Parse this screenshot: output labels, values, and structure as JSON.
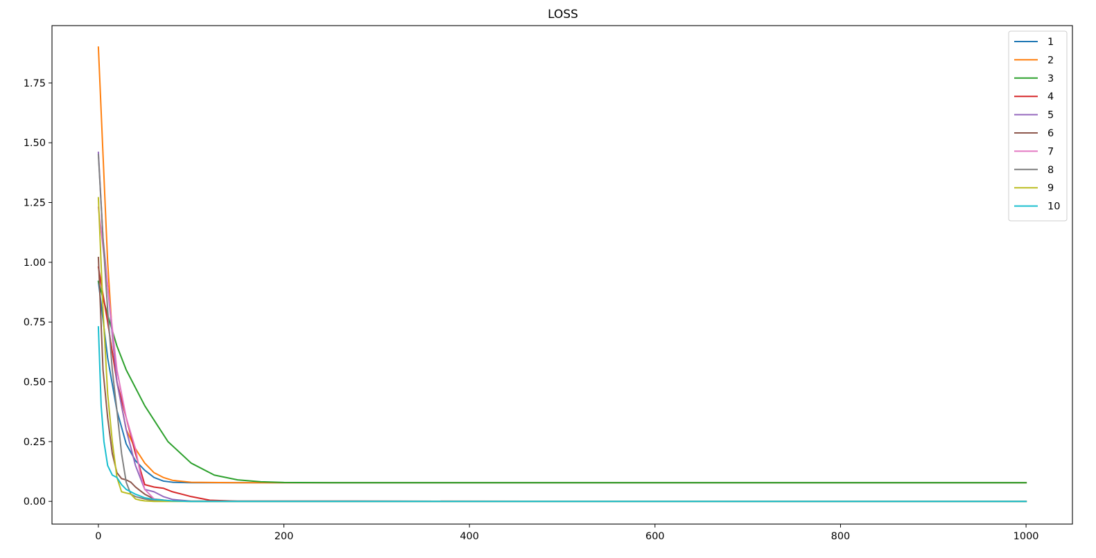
{
  "chart_data": {
    "type": "line",
    "title": "LOSS",
    "xlabel": "",
    "ylabel": "",
    "xlim": [
      -50,
      1050
    ],
    "ylim": [
      -0.095,
      1.99
    ],
    "xticks": [
      0,
      200,
      400,
      600,
      800,
      1000
    ],
    "xtick_labels": [
      "0",
      "200",
      "400",
      "600",
      "800",
      "1000"
    ],
    "yticks": [
      0.0,
      0.25,
      0.5,
      0.75,
      1.0,
      1.25,
      1.5,
      1.75
    ],
    "ytick_labels": [
      "0.00",
      "0.25",
      "0.50",
      "0.75",
      "1.00",
      "1.25",
      "1.50",
      "1.75"
    ],
    "grid": false,
    "legend_position": "top-right",
    "series": [
      {
        "name": "1",
        "color": "#1f77b4",
        "x": [
          0,
          10,
          20,
          30,
          40,
          50,
          60,
          70,
          80,
          100,
          150,
          200,
          1000
        ],
        "y": [
          0.92,
          0.6,
          0.38,
          0.24,
          0.17,
          0.13,
          0.1,
          0.085,
          0.08,
          0.078,
          0.078,
          0.078,
          0.078
        ]
      },
      {
        "name": "2",
        "color": "#ff7f0e",
        "x": [
          0,
          5,
          10,
          15,
          20,
          30,
          40,
          50,
          60,
          70,
          80,
          100,
          150,
          200,
          1000
        ],
        "y": [
          1.9,
          1.45,
          1.0,
          0.7,
          0.5,
          0.3,
          0.22,
          0.16,
          0.12,
          0.1,
          0.088,
          0.08,
          0.078,
          0.078,
          0.078
        ]
      },
      {
        "name": "3",
        "color": "#2ca02c",
        "x": [
          0,
          10,
          20,
          30,
          50,
          75,
          100,
          125,
          150,
          175,
          200,
          250,
          1000
        ],
        "y": [
          0.92,
          0.78,
          0.65,
          0.55,
          0.4,
          0.25,
          0.16,
          0.11,
          0.09,
          0.082,
          0.079,
          0.078,
          0.078
        ]
      },
      {
        "name": "4",
        "color": "#d62728",
        "x": [
          0,
          10,
          20,
          30,
          40,
          50,
          60,
          70,
          80,
          90,
          100,
          120,
          150,
          1000
        ],
        "y": [
          0.98,
          0.75,
          0.5,
          0.35,
          0.2,
          0.07,
          0.06,
          0.055,
          0.04,
          0.03,
          0.02,
          0.005,
          0.001,
          0.0
        ]
      },
      {
        "name": "5",
        "color": "#9467bd",
        "x": [
          0,
          5,
          10,
          15,
          20,
          30,
          40,
          50,
          55,
          60,
          70,
          80,
          100,
          1000
        ],
        "y": [
          1.46,
          1.1,
          0.9,
          0.7,
          0.5,
          0.3,
          0.15,
          0.05,
          0.045,
          0.04,
          0.02,
          0.008,
          0.001,
          0.0
        ]
      },
      {
        "name": "6",
        "color": "#8c564b",
        "x": [
          0,
          5,
          10,
          15,
          20,
          25,
          30,
          35,
          40,
          45,
          50,
          60,
          80,
          1000
        ],
        "y": [
          1.02,
          0.55,
          0.35,
          0.2,
          0.12,
          0.095,
          0.09,
          0.08,
          0.06,
          0.045,
          0.03,
          0.01,
          0.001,
          0.0
        ]
      },
      {
        "name": "7",
        "color": "#e377c2",
        "x": [
          0,
          10,
          20,
          30,
          40,
          45,
          50,
          55,
          60,
          70,
          100,
          1000
        ],
        "y": [
          1.23,
          0.9,
          0.55,
          0.35,
          0.22,
          0.12,
          0.05,
          0.03,
          0.01,
          0.003,
          0.0,
          0.0
        ]
      },
      {
        "name": "8",
        "color": "#7f7f7f",
        "x": [
          0,
          5,
          10,
          15,
          20,
          25,
          30,
          35,
          40,
          50,
          60,
          100,
          1000
        ],
        "y": [
          1.45,
          1.1,
          0.8,
          0.55,
          0.38,
          0.2,
          0.08,
          0.03,
          0.02,
          0.01,
          0.003,
          0.0,
          0.0
        ]
      },
      {
        "name": "9",
        "color": "#bcbd22",
        "x": [
          0,
          5,
          10,
          15,
          20,
          25,
          30,
          35,
          40,
          45,
          50,
          60,
          100,
          1000
        ],
        "y": [
          1.27,
          0.8,
          0.45,
          0.25,
          0.1,
          0.04,
          0.035,
          0.03,
          0.01,
          0.005,
          0.002,
          0.0,
          0.0,
          0.0
        ]
      },
      {
        "name": "10",
        "color": "#17becf",
        "x": [
          0,
          3,
          6,
          10,
          15,
          20,
          25,
          30,
          40,
          50,
          60,
          80,
          100,
          1000
        ],
        "y": [
          0.73,
          0.4,
          0.25,
          0.15,
          0.11,
          0.1,
          0.07,
          0.05,
          0.03,
          0.015,
          0.008,
          0.002,
          0.0,
          0.0
        ]
      }
    ]
  }
}
